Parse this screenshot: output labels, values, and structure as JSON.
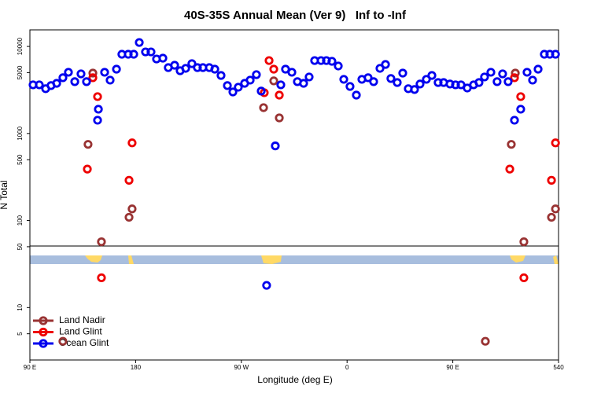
{
  "chart_data": {
    "type": "scatter",
    "title": "40S-35S Annual Mean (Ver 9)   Inf to -Inf",
    "x_label": "Longitude (deg E)",
    "y_label": "N Total",
    "log_y": true,
    "legend": "lower left",
    "xlim": [
      90,
      540
    ],
    "xticks": [
      {
        "value": 90,
        "label": "90 E"
      },
      180,
      {
        "value": 270,
        "label": "90 W"
      },
      {
        "value": 360,
        "label": "0"
      },
      {
        "value": 450,
        "label": "90 E"
      },
      540
    ],
    "ylim": [
      2.5,
      15500
    ],
    "yticks": [
      5,
      10,
      50,
      100,
      500,
      1000,
      5000,
      10000
    ],
    "series": [
      {
        "name": "Land Nadir",
        "color": "#993333",
        "x": [
          118.1,
          139.5,
          143.6,
          150.9,
          174.4,
          177,
          288.9,
          297.6,
          302.3,
          477.7,
          499.8,
          503.2,
          510.5,
          534,
          537.4
        ],
        "values": [
          4.1,
          750,
          4940,
          57,
          109,
          136,
          1980,
          4020,
          1510,
          4.1,
          750,
          4940,
          57,
          109,
          136
        ]
      },
      {
        "name": "Land Glint",
        "color": "#ee0000",
        "x": [
          138.9,
          143.6,
          147.6,
          150.9,
          174.4,
          177,
          289.5,
          293.6,
          297.6,
          302.3,
          498.5,
          502.5,
          507.8,
          510.5,
          534,
          537.4
        ],
        "values": [
          390,
          4370,
          2650,
          22,
          290,
          780,
          2940,
          6880,
          5480,
          2760,
          390,
          4370,
          2650,
          22,
          290,
          780
        ]
      },
      {
        "name": "Ocean Glint",
        "color": "#0000ee",
        "x": [
          92.7,
          98,
          103.4,
          108,
          112.8,
          118.1,
          122.8,
          128.2,
          133.5,
          138.2,
          147.6,
          148.3,
          153.6,
          158.3,
          163.7,
          168.3,
          173.7,
          178.4,
          183.1,
          188.4,
          193.1,
          197.8,
          203.2,
          207.8,
          213.2,
          217.9,
          222.6,
          227.9,
          232.6,
          237.3,
          242.7,
          247.4,
          252.7,
          258.1,
          262.8,
          267.4,
          272.8,
          277.5,
          282.8,
          286.9,
          291.5,
          298.9,
          303.6,
          307.6,
          313,
          317.7,
          323,
          327.7,
          332.4,
          337.8,
          342.4,
          347.1,
          352.5,
          357.2,
          362.5,
          367.9,
          372.6,
          377.9,
          382.6,
          388,
          392.7,
          397.3,
          402.7,
          407.4,
          412.1,
          417.4,
          422.1,
          427.5,
          432.2,
          437.5,
          442.2,
          447.6,
          452.3,
          457,
          462.3,
          467.7,
          472.3,
          477,
          482.4,
          487.7,
          492.4,
          497.1,
          502.5,
          507.8,
          513.2,
          517.9,
          522.6,
          527.9,
          532.6,
          537.4
        ],
        "values": [
          3620,
          3620,
          3270,
          3550,
          3770,
          4370,
          5050,
          3940,
          4840,
          3940,
          1420,
          1900,
          5050,
          4100,
          5480,
          8130,
          8130,
          8130,
          11100,
          8650,
          8650,
          7170,
          7330,
          5710,
          6080,
          5260,
          5600,
          6340,
          5710,
          5710,
          5710,
          5480,
          4640,
          3550,
          3000,
          3400,
          3770,
          4100,
          4740,
          3070,
          18,
          720,
          3620,
          5480,
          5050,
          3940,
          3770,
          4460,
          6880,
          6880,
          6880,
          6750,
          5960,
          4190,
          3470,
          2760,
          4190,
          4370,
          3940,
          5600,
          6210,
          4280,
          3850,
          4940,
          3270,
          3200,
          3700,
          4190,
          4640,
          3850,
          3850,
          3700,
          3620,
          3620,
          3330,
          3620,
          3850,
          4460,
          5050,
          3940,
          4840,
          3940,
          1420,
          1900,
          5050,
          4100,
          5480,
          8130,
          8130,
          8130
        ]
      }
    ]
  }
}
